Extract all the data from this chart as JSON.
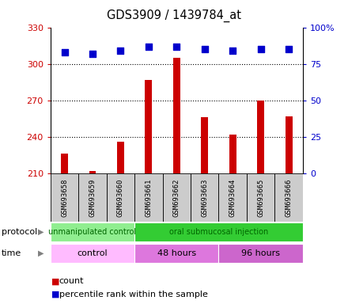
{
  "title": "GDS3909 / 1439784_at",
  "samples": [
    "GSM693658",
    "GSM693659",
    "GSM693660",
    "GSM693661",
    "GSM693662",
    "GSM693663",
    "GSM693664",
    "GSM693665",
    "GSM693666"
  ],
  "counts": [
    226,
    212,
    236,
    287,
    305,
    256,
    242,
    270,
    257
  ],
  "percentile_ranks": [
    83,
    82,
    84,
    87,
    87,
    85,
    84,
    85,
    85
  ],
  "ylim_left": [
    210,
    330
  ],
  "ylim_right": [
    0,
    100
  ],
  "yticks_left": [
    210,
    240,
    270,
    300,
    330
  ],
  "yticks_right": [
    0,
    25,
    50,
    75,
    100
  ],
  "bar_color": "#cc0000",
  "dot_color": "#0000cc",
  "protocol_groups": [
    {
      "label": "unmanipulated control",
      "start": 0,
      "end": 3,
      "color": "#90ee90"
    },
    {
      "label": "oral submucosal injection",
      "start": 3,
      "end": 9,
      "color": "#33cc33"
    }
  ],
  "time_groups": [
    {
      "label": "control",
      "start": 0,
      "end": 3,
      "color": "#ffbbff"
    },
    {
      "label": "48 hours",
      "start": 3,
      "end": 6,
      "color": "#dd77dd"
    },
    {
      "label": "96 hours",
      "start": 6,
      "end": 9,
      "color": "#cc66cc"
    }
  ],
  "legend_count_color": "#cc0000",
  "legend_percentile_color": "#0000cc",
  "axis_color_left": "#cc0000",
  "axis_color_right": "#0000cc",
  "bg_color": "#ffffff",
  "plot_bg_color": "#ffffff",
  "sample_box_color": "#cccccc",
  "protocol_text_color": "#006600",
  "time_text_color": "#000000",
  "n_samples": 9
}
